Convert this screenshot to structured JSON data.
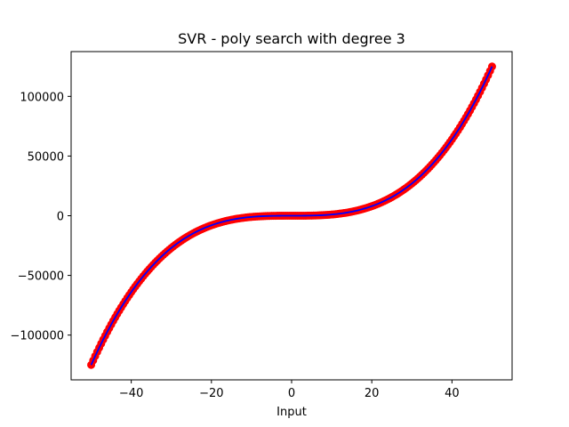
{
  "chart_data": {
    "type": "scatter",
    "title": "SVR - poly search with degree 3",
    "xlabel": "Input",
    "ylabel": "",
    "xlim": [
      -55,
      55
    ],
    "ylim": [
      -137500,
      137500
    ],
    "x_ticks": [
      -40,
      -20,
      0,
      20,
      40
    ],
    "y_ticks": [
      -100000,
      -50000,
      0,
      50000,
      100000
    ],
    "grid": false,
    "legend": "none",
    "model": "y = x^3",
    "series": [
      {
        "kind": "scatter",
        "color": "#ff0000",
        "x_start": -50,
        "x_end": 50,
        "x_step": 0.5,
        "coefficient": 1,
        "power": 3
      },
      {
        "kind": "line",
        "color": "#0000ff",
        "x_start": -50,
        "x_end": 50,
        "x_step": 0.5,
        "coefficient": 1,
        "power": 3
      }
    ]
  }
}
